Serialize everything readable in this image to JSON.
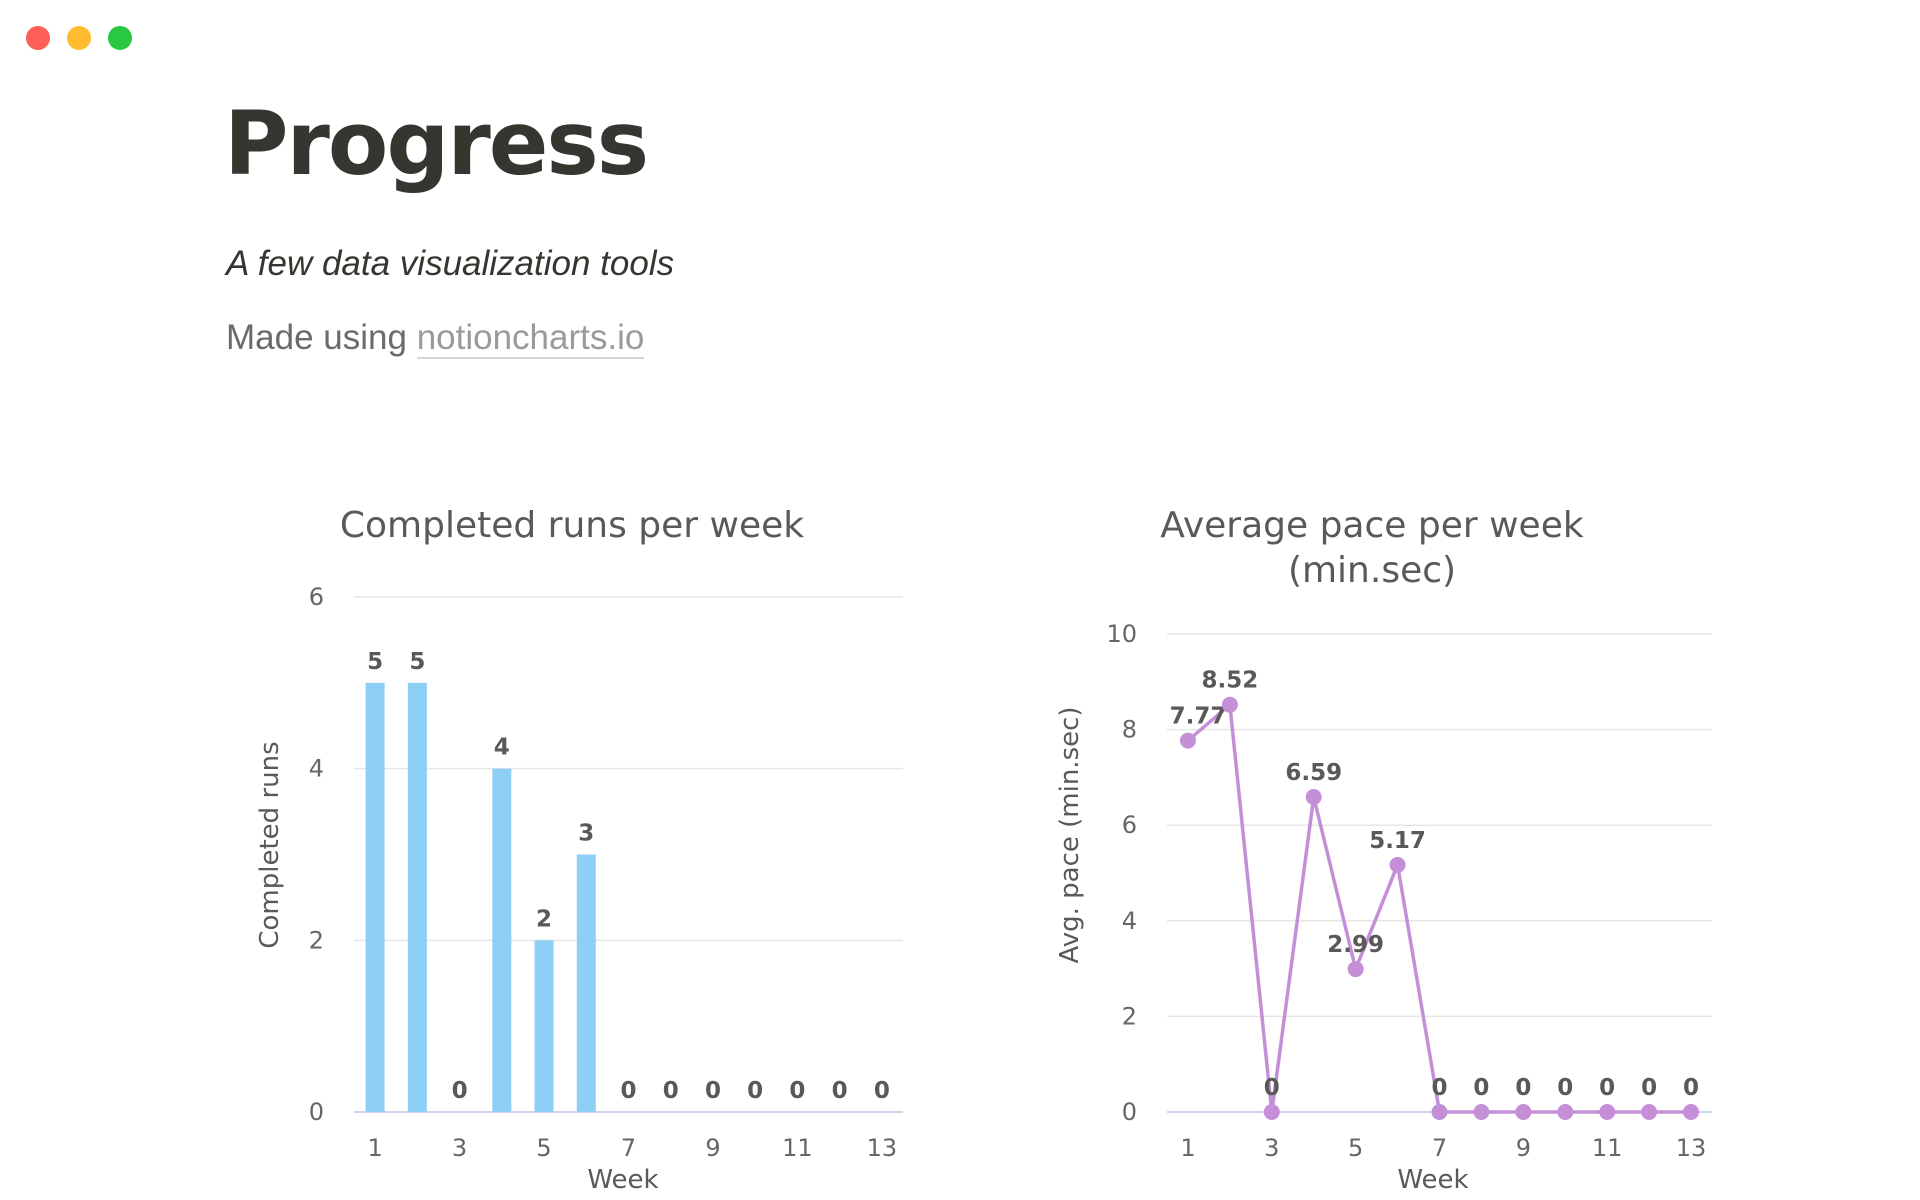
{
  "window": {
    "controls": [
      "close",
      "minimize",
      "zoom"
    ]
  },
  "page": {
    "title": "Progress",
    "subtitle": "A few data visualization tools",
    "made_using_prefix": "Made using",
    "made_using_link": "notioncharts.io"
  },
  "chart_data": [
    {
      "type": "bar",
      "title": "Completed runs per week",
      "xlabel": "Week",
      "ylabel": "Completed runs",
      "categories": [
        1,
        2,
        3,
        4,
        5,
        6,
        7,
        8,
        9,
        10,
        11,
        12,
        13
      ],
      "values": [
        5,
        5,
        0,
        4,
        2,
        3,
        0,
        0,
        0,
        0,
        0,
        0,
        0
      ],
      "x_tick_labels": [
        "1",
        "3",
        "5",
        "7",
        "9",
        "11",
        "13"
      ],
      "y_ticks": [
        0,
        2,
        4,
        6
      ],
      "ylim": [
        0,
        6
      ],
      "grid": true,
      "data_labels": true,
      "color": "#8ecff5"
    },
    {
      "type": "line",
      "title": "Average pace per week",
      "title_line2": "(min.sec)",
      "xlabel": "Week",
      "ylabel": "Avg. pace (min.sec)",
      "x": [
        1,
        2,
        3,
        4,
        5,
        6,
        7,
        8,
        9,
        10,
        11,
        12,
        13
      ],
      "values": [
        7.77,
        8.52,
        0,
        6.59,
        2.99,
        5.17,
        0,
        0,
        0,
        0,
        0,
        0,
        0
      ],
      "x_tick_labels": [
        "1",
        "3",
        "5",
        "7",
        "9",
        "11",
        "13"
      ],
      "y_ticks": [
        0,
        2,
        4,
        6,
        8,
        10
      ],
      "ylim": [
        0,
        10
      ],
      "grid": true,
      "data_labels": true,
      "color": "#c58fd8"
    }
  ]
}
